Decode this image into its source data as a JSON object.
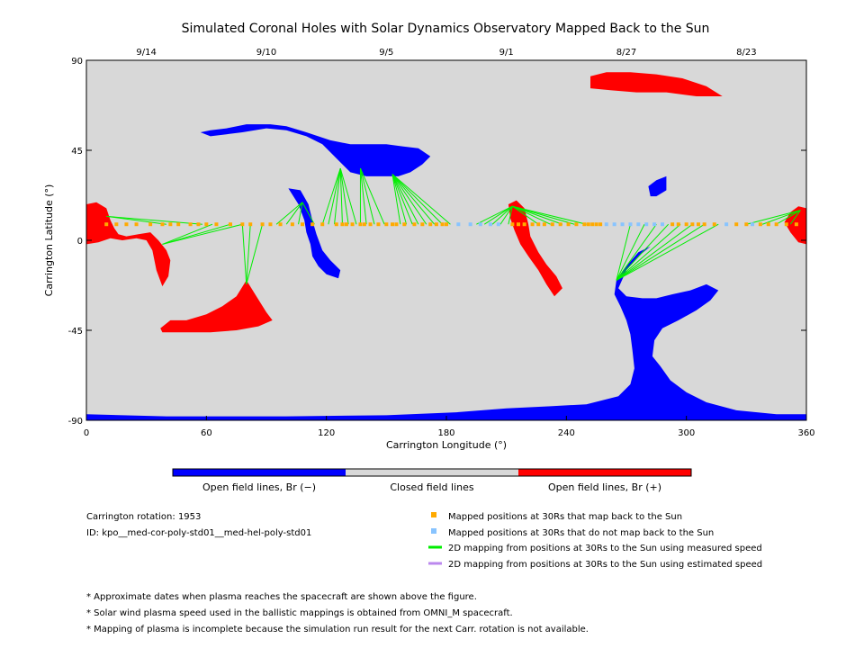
{
  "chart_data": {
    "type": "scatter",
    "title": "Simulated Coronal Holes with Solar Dynamics Observatory Mapped Back to the Sun",
    "xlabel": "Carrington Longitude (°)",
    "ylabel": "Carrington Latitude (°)",
    "xlim": [
      0,
      360
    ],
    "ylim": [
      -90,
      90
    ],
    "x_ticks": [
      "0",
      "60",
      "120",
      "180",
      "240",
      "300",
      "360"
    ],
    "y_ticks": [
      "90",
      "45",
      "0",
      "-45",
      "-90"
    ],
    "top_axis_dates": [
      {
        "label": "9/14",
        "lon": 30
      },
      {
        "label": "9/10",
        "lon": 90
      },
      {
        "label": "9/5",
        "lon": 150
      },
      {
        "label": "9/1",
        "lon": 210
      },
      {
        "label": "8/27",
        "lon": 270
      },
      {
        "label": "8/23",
        "lon": 330
      }
    ],
    "colors": {
      "background": "#d8d8d8",
      "open_negative": "#0000ff",
      "open_positive": "#ff0000",
      "closed": "#d8d8d8",
      "mapped": "#ffaa00",
      "not_mapped": "#88c4ff",
      "measured_line": "#00ee00",
      "estimated_line": "#bb88ee"
    },
    "colorbar": [
      {
        "label": "Open field lines, Br (−)",
        "color": "#0000ff"
      },
      {
        "label": "Closed field lines",
        "color": "#d8d8d8"
      },
      {
        "label": "Open field lines, Br (+)",
        "color": "#ff0000"
      }
    ],
    "regions": [
      {
        "polarity": "positive",
        "points": [
          [
            0,
            18
          ],
          [
            5,
            19
          ],
          [
            10,
            16
          ],
          [
            12,
            10
          ],
          [
            14,
            6
          ],
          [
            16,
            3
          ],
          [
            20,
            2
          ],
          [
            26,
            3
          ],
          [
            32,
            4
          ],
          [
            36,
            0
          ],
          [
            40,
            -5
          ],
          [
            42,
            -10
          ],
          [
            41,
            -18
          ],
          [
            38,
            -23
          ],
          [
            35,
            -15
          ],
          [
            33,
            -5
          ],
          [
            30,
            0
          ],
          [
            25,
            1
          ],
          [
            18,
            0
          ],
          [
            12,
            1
          ],
          [
            6,
            -1
          ],
          [
            0,
            -2
          ]
        ]
      },
      {
        "polarity": "positive",
        "points": [
          [
            37,
            -44
          ],
          [
            42,
            -40
          ],
          [
            50,
            -40
          ],
          [
            60,
            -37
          ],
          [
            68,
            -33
          ],
          [
            75,
            -28
          ],
          [
            80,
            -20
          ],
          [
            85,
            -28
          ],
          [
            90,
            -36
          ],
          [
            93,
            -40
          ],
          [
            86,
            -43
          ],
          [
            75,
            -45
          ],
          [
            62,
            -46
          ],
          [
            48,
            -46
          ],
          [
            38,
            -46
          ]
        ]
      },
      {
        "polarity": "negative",
        "points": [
          [
            57,
            54
          ],
          [
            62,
            55
          ],
          [
            70,
            56
          ],
          [
            80,
            58
          ],
          [
            92,
            58
          ],
          [
            100,
            57
          ],
          [
            110,
            54
          ],
          [
            122,
            50
          ],
          [
            132,
            48
          ],
          [
            142,
            48
          ],
          [
            150,
            48
          ],
          [
            158,
            47
          ],
          [
            166,
            46
          ],
          [
            172,
            42
          ],
          [
            168,
            38
          ],
          [
            162,
            34
          ],
          [
            156,
            32
          ],
          [
            148,
            32
          ],
          [
            140,
            32
          ],
          [
            132,
            34
          ],
          [
            126,
            40
          ],
          [
            118,
            48
          ],
          [
            110,
            52
          ],
          [
            100,
            55
          ],
          [
            90,
            56
          ],
          [
            78,
            54
          ],
          [
            70,
            53
          ],
          [
            62,
            52
          ]
        ]
      },
      {
        "polarity": "negative",
        "points": [
          [
            101,
            26
          ],
          [
            107,
            25
          ],
          [
            111,
            18
          ],
          [
            113,
            10
          ],
          [
            115,
            3
          ],
          [
            118,
            -5
          ],
          [
            122,
            -10
          ],
          [
            127,
            -15
          ],
          [
            126,
            -19
          ],
          [
            120,
            -17
          ],
          [
            116,
            -13
          ],
          [
            113,
            -8
          ],
          [
            112,
            -2
          ],
          [
            110,
            4
          ],
          [
            109,
            10
          ],
          [
            106,
            18
          ]
        ]
      },
      {
        "polarity": "positive",
        "points": [
          [
            211,
            18
          ],
          [
            215,
            20
          ],
          [
            219,
            16
          ],
          [
            221,
            8
          ],
          [
            222,
            2
          ],
          [
            226,
            -6
          ],
          [
            230,
            -12
          ],
          [
            235,
            -18
          ],
          [
            238,
            -24
          ],
          [
            234,
            -28
          ],
          [
            230,
            -22
          ],
          [
            226,
            -15
          ],
          [
            221,
            -8
          ],
          [
            217,
            -2
          ],
          [
            214,
            5
          ],
          [
            212,
            11
          ]
        ]
      },
      {
        "polarity": "positive",
        "points": [
          [
            252,
            82
          ],
          [
            260,
            84
          ],
          [
            272,
            84
          ],
          [
            285,
            83
          ],
          [
            298,
            81
          ],
          [
            310,
            77
          ],
          [
            318,
            72
          ],
          [
            305,
            72
          ],
          [
            290,
            74
          ],
          [
            275,
            74
          ],
          [
            262,
            75
          ],
          [
            252,
            76
          ]
        ]
      },
      {
        "polarity": "negative",
        "points": [
          [
            281,
            27
          ],
          [
            285,
            30
          ],
          [
            290,
            32
          ],
          [
            290,
            25
          ],
          [
            285,
            22
          ],
          [
            282,
            22
          ]
        ]
      },
      {
        "polarity": "negative",
        "points": [
          [
            265,
            -20
          ],
          [
            270,
            -13
          ],
          [
            276,
            -6
          ],
          [
            282,
            -3
          ],
          [
            276,
            -8
          ],
          [
            270,
            -15
          ],
          [
            266,
            -24
          ],
          [
            270,
            -28
          ],
          [
            278,
            -29
          ],
          [
            285,
            -29
          ],
          [
            293,
            -27
          ],
          [
            302,
            -25
          ],
          [
            310,
            -22
          ],
          [
            316,
            -25
          ],
          [
            312,
            -30
          ],
          [
            305,
            -35
          ],
          [
            296,
            -40
          ],
          [
            288,
            -44
          ],
          [
            284,
            -50
          ],
          [
            283,
            -58
          ],
          [
            287,
            -63
          ],
          [
            292,
            -70
          ],
          [
            300,
            -76
          ],
          [
            310,
            -81
          ],
          [
            325,
            -85
          ],
          [
            345,
            -87
          ],
          [
            360,
            -87
          ],
          [
            360,
            -90
          ],
          [
            0,
            -90
          ],
          [
            0,
            -87
          ],
          [
            40,
            -88
          ],
          [
            100,
            -88
          ],
          [
            150,
            -87.5
          ],
          [
            185,
            -86
          ],
          [
            210,
            -84
          ],
          [
            232,
            -83
          ],
          [
            250,
            -82
          ],
          [
            266,
            -78
          ],
          [
            272,
            -72
          ],
          [
            274,
            -64
          ],
          [
            273,
            -55
          ],
          [
            272,
            -47
          ],
          [
            270,
            -40
          ],
          [
            267,
            -33
          ],
          [
            264,
            -27
          ]
        ]
      },
      {
        "polarity": "positive",
        "points": [
          [
            352,
            14
          ],
          [
            356,
            17
          ],
          [
            360,
            16
          ],
          [
            360,
            -2
          ],
          [
            356,
            -1
          ],
          [
            352,
            4
          ],
          [
            349,
            9
          ]
        ]
      }
    ],
    "mapped_points": [
      {
        "lat": 8,
        "lons": [
          10,
          15,
          20,
          25,
          32,
          38,
          42,
          46,
          52,
          56,
          60,
          65,
          72,
          78,
          82,
          88,
          92,
          97,
          103,
          108,
          113,
          118,
          125,
          128,
          130,
          133,
          137,
          139,
          142,
          146,
          150,
          153,
          155,
          159,
          164,
          168,
          172,
          175,
          178,
          180,
          213,
          216,
          219,
          223,
          226,
          229,
          233,
          237,
          241,
          245,
          249,
          251,
          253,
          255,
          257,
          293,
          296,
          300,
          303,
          306,
          309,
          314,
          325,
          330,
          337,
          341,
          345,
          350,
          355
        ]
      }
    ],
    "not_mapped_points": [
      {
        "lat": 8,
        "lons": [
          186,
          192,
          197,
          202,
          206,
          260,
          264,
          268,
          272,
          276,
          280,
          284,
          288,
          320,
          333
        ]
      }
    ],
    "measured_lines": [
      {
        "from": [
          10,
          12
        ],
        "to": [
          [
            40,
            8
          ],
          [
            58,
            8
          ]
        ]
      },
      {
        "from": [
          38,
          -2
        ],
        "to": [
          [
            63,
            8
          ],
          [
            72,
            8
          ],
          [
            78,
            8
          ]
        ]
      },
      {
        "from": [
          80,
          -22
        ],
        "to": [
          [
            78,
            8
          ],
          [
            82,
            8
          ],
          [
            88,
            8
          ]
        ]
      },
      {
        "from": [
          108,
          19
        ],
        "to": [
          [
            95,
            8
          ],
          [
            100,
            8
          ],
          [
            106,
            8
          ],
          [
            114,
            8
          ]
        ]
      },
      {
        "from": [
          127,
          36
        ],
        "to": [
          [
            118,
            8
          ],
          [
            121,
            8
          ],
          [
            124,
            8
          ],
          [
            128,
            8
          ],
          [
            131,
            8
          ],
          [
            135,
            8
          ]
        ]
      },
      {
        "from": [
          137,
          36
        ],
        "to": [
          [
            137,
            8
          ],
          [
            140,
            8
          ],
          [
            144,
            8
          ],
          [
            149,
            8
          ]
        ]
      },
      {
        "from": [
          153,
          33
        ],
        "to": [
          [
            157,
            8
          ],
          [
            160,
            8
          ],
          [
            163,
            8
          ],
          [
            166,
            8
          ],
          [
            170,
            8
          ],
          [
            174,
            8
          ],
          [
            178,
            8
          ],
          [
            182,
            8
          ]
        ]
      },
      {
        "from": [
          213,
          17
        ],
        "to": [
          [
            195,
            8
          ],
          [
            199,
            8
          ],
          [
            203,
            8
          ],
          [
            207,
            8
          ],
          [
            211,
            8
          ],
          [
            226,
            8
          ],
          [
            232,
            8
          ],
          [
            238,
            8
          ],
          [
            244,
            8
          ],
          [
            250,
            8
          ]
        ]
      },
      {
        "from": [
          265,
          -20
        ],
        "to": [
          [
            272,
            8
          ],
          [
            279,
            8
          ],
          [
            285,
            8
          ],
          [
            291,
            8
          ],
          [
            297,
            8
          ],
          [
            303,
            8
          ],
          [
            309,
            8
          ],
          [
            316,
            8
          ]
        ]
      },
      {
        "from": [
          357,
          15
        ],
        "to": [
          [
            330,
            8
          ],
          [
            338,
            8
          ],
          [
            345,
            8
          ],
          [
            352,
            8
          ]
        ]
      }
    ],
    "legend": {
      "rotation_label": "Carrington rotation: 1953",
      "id_label": "ID: kpo__med-cor-poly-std01__med-hel-poly-std01",
      "mapped": "Mapped positions at 30Rs that map back to the Sun",
      "not_mapped": "Mapped positions at 30Rs that do not map back to the Sun",
      "measured": "2D mapping from positions at 30Rs to the Sun using measured speed",
      "estimated": "2D mapping from positions at 30Rs to the Sun using estimated speed"
    },
    "notes": [
      "* Approximate dates when plasma reaches the spacecraft are shown above the figure.",
      "* Solar wind plasma speed used in the ballistic mappings is obtained from OMNI_M spacecraft.",
      "* Mapping of plasma is incomplete because the simulation run result for the next Carr. rotation is not available."
    ]
  }
}
